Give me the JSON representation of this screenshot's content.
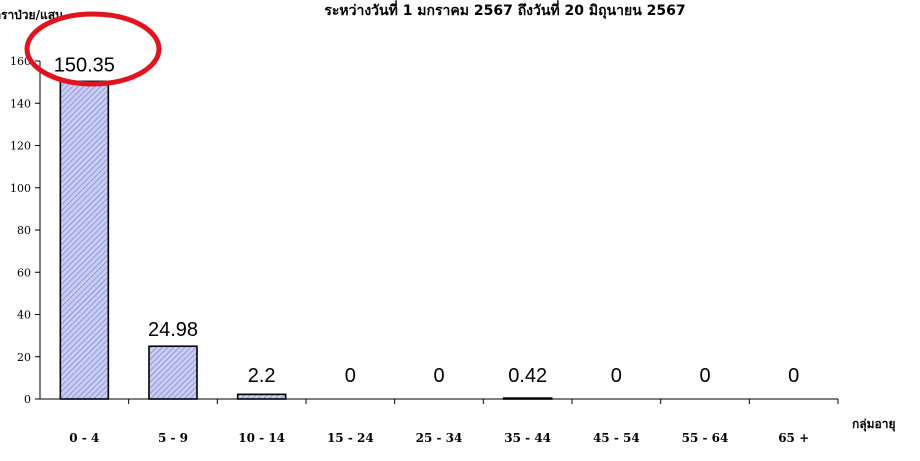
{
  "chart_data": {
    "type": "bar",
    "title": "ระหว่างวันที่ 1 มกราคม 2567 ถึงวันที่ 20 มิถุนายน 2567",
    "ylabel": "อัตราป่วย/แสน",
    "xlabel": "กลุ่มอายุ",
    "categories": [
      "0 - 4",
      "5 - 9",
      "10 - 14",
      "15 - 24",
      "25 - 34",
      "35 - 44",
      "45 - 54",
      "55 - 64",
      "65 +"
    ],
    "values": [
      150.35,
      24.98,
      2.2,
      0,
      0,
      0.42,
      0,
      0,
      0
    ],
    "data_labels": [
      "150.35",
      "24.98",
      "2.2",
      "0",
      "0",
      "0.42",
      "0",
      "0",
      "0"
    ],
    "ylim": [
      0,
      160
    ],
    "yticks": [
      "0",
      "20",
      "40",
      "60",
      "80",
      "100",
      "120",
      "140",
      "160"
    ],
    "highlighted_category": "0 - 4",
    "colors": {
      "bar_fill": "#c9cdf2",
      "bar_hatch": "#6f76c9",
      "highlight": "#e0141e"
    }
  }
}
